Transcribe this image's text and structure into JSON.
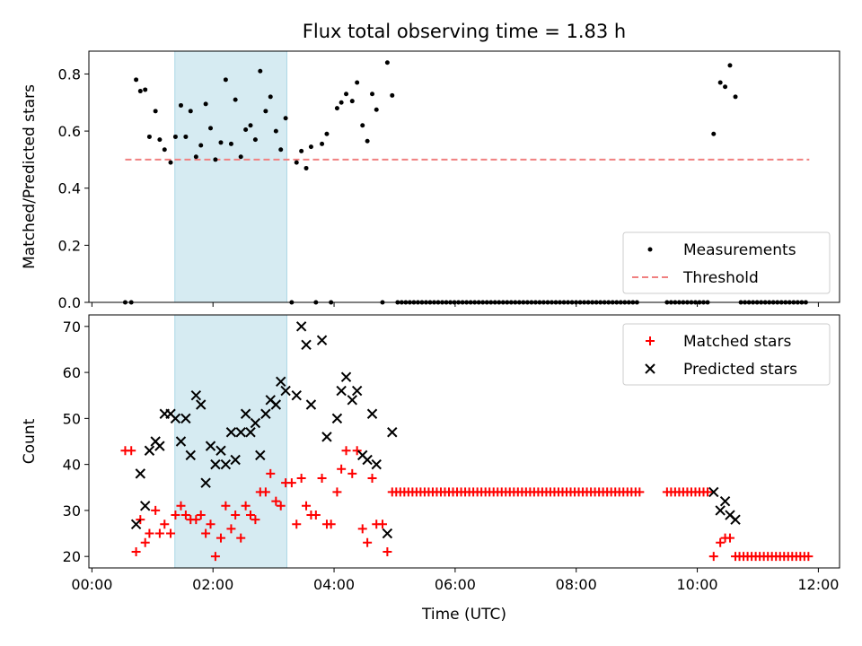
{
  "title": "Flux total observing time = 1.83 h",
  "chart_data": [
    {
      "type": "scatter",
      "panel": "top",
      "ylabel": "Matched/Predicted stars",
      "xlabel": "",
      "xlim": [
        -0.05,
        12.35
      ],
      "ylim": [
        0,
        0.88
      ],
      "yticks": [
        0.0,
        0.2,
        0.4,
        0.6,
        0.8
      ],
      "ytick_labels": [
        "0.0",
        "0.2",
        "0.4",
        "0.6",
        "0.8"
      ],
      "xticks": [
        0,
        2,
        4,
        6,
        8,
        10,
        12
      ],
      "shaded_span": {
        "x": [
          1.37,
          3.22
        ],
        "color": "#add8e6"
      },
      "legend": {
        "position": "lower right",
        "entries": [
          {
            "label": "Measurements",
            "marker": "dot",
            "color": "#000000"
          },
          {
            "label": "Threshold",
            "marker": "dashed-line",
            "color": "#f08080"
          }
        ]
      },
      "threshold": {
        "value": 0.5,
        "x": [
          0.55,
          11.85
        ],
        "color": "#f08080"
      },
      "series": [
        {
          "name": "Measurements",
          "color": "#000000",
          "points": [
            [
              0.55,
              0
            ],
            [
              0.65,
              0
            ],
            [
              0.73,
              0.78
            ],
            [
              0.8,
              0.74
            ],
            [
              0.88,
              0.745
            ],
            [
              0.95,
              0.58
            ],
            [
              1.05,
              0.67
            ],
            [
              1.12,
              0.57
            ],
            [
              1.2,
              0.535
            ],
            [
              1.3,
              0.49
            ],
            [
              1.38,
              0.58
            ],
            [
              1.47,
              0.69
            ],
            [
              1.55,
              0.58
            ],
            [
              1.63,
              0.67
            ],
            [
              1.72,
              0.51
            ],
            [
              1.8,
              0.55
            ],
            [
              1.88,
              0.695
            ],
            [
              1.96,
              0.61
            ],
            [
              2.04,
              0.5
            ],
            [
              2.13,
              0.56
            ],
            [
              2.21,
              0.78
            ],
            [
              2.3,
              0.555
            ],
            [
              2.37,
              0.71
            ],
            [
              2.46,
              0.51
            ],
            [
              2.54,
              0.605
            ],
            [
              2.62,
              0.62
            ],
            [
              2.7,
              0.57
            ],
            [
              2.78,
              0.81
            ],
            [
              2.87,
              0.67
            ],
            [
              2.95,
              0.72
            ],
            [
              3.04,
              0.6
            ],
            [
              3.12,
              0.535
            ],
            [
              3.2,
              0.645
            ],
            [
              3.3,
              0
            ],
            [
              3.38,
              0.49
            ],
            [
              3.46,
              0.53
            ],
            [
              3.54,
              0.47
            ],
            [
              3.62,
              0.545
            ],
            [
              3.8,
              0.555
            ],
            [
              3.88,
              0.59
            ],
            [
              3.7,
              0
            ],
            [
              3.95,
              0
            ],
            [
              4.05,
              0.68
            ],
            [
              4.12,
              0.7
            ],
            [
              4.2,
              0.73
            ],
            [
              4.3,
              0.705
            ],
            [
              4.38,
              0.77
            ],
            [
              4.47,
              0.62
            ],
            [
              4.55,
              0.565
            ],
            [
              4.63,
              0.73
            ],
            [
              4.7,
              0.675
            ],
            [
              4.8,
              0
            ],
            [
              4.88,
              0.84
            ],
            [
              4.96,
              0.725
            ],
            [
              10.27,
              0.59
            ],
            [
              10.38,
              0.77
            ],
            [
              10.46,
              0.755
            ],
            [
              10.54,
              0.83
            ],
            [
              10.63,
              0.72
            ]
          ]
        },
        {
          "name": "Measurements (zero run)",
          "color": "#000000",
          "zero_runs": [
            [
              5.05,
              9.05,
              0.067
            ],
            [
              9.5,
              10.2,
              0.067
            ],
            [
              10.72,
              11.85,
              0.067
            ]
          ]
        }
      ]
    },
    {
      "type": "scatter",
      "panel": "bottom",
      "xlabel": "Time (UTC)",
      "ylabel": "Count",
      "xlim": [
        -0.05,
        12.35
      ],
      "ylim": [
        17.5,
        72.5
      ],
      "yticks": [
        20,
        30,
        40,
        50,
        60,
        70
      ],
      "ytick_labels": [
        "20",
        "30",
        "40",
        "50",
        "60",
        "70"
      ],
      "xticks": [
        0,
        2,
        4,
        6,
        8,
        10,
        12
      ],
      "xtick_labels": [
        "00:00",
        "02:00",
        "04:00",
        "06:00",
        "08:00",
        "10:00",
        "12:00"
      ],
      "shaded_span": {
        "x": [
          1.37,
          3.22
        ],
        "color": "#add8e6"
      },
      "legend": {
        "position": "upper right",
        "entries": [
          {
            "label": "Matched stars",
            "marker": "plus",
            "color": "#ff0000"
          },
          {
            "label": "Predicted stars",
            "marker": "x",
            "color": "#000000"
          }
        ]
      },
      "series": [
        {
          "name": "Matched stars",
          "color": "#ff0000",
          "marker": "plus",
          "points": [
            [
              0.55,
              43
            ],
            [
              0.65,
              43
            ],
            [
              0.73,
              21
            ],
            [
              0.8,
              28
            ],
            [
              0.88,
              23
            ],
            [
              0.95,
              25
            ],
            [
              1.05,
              30
            ],
            [
              1.12,
              25
            ],
            [
              1.2,
              27
            ],
            [
              1.3,
              25
            ],
            [
              1.38,
              29
            ],
            [
              1.47,
              31
            ],
            [
              1.55,
              29
            ],
            [
              1.63,
              28
            ],
            [
              1.72,
              28
            ],
            [
              1.8,
              29
            ],
            [
              1.88,
              25
            ],
            [
              1.96,
              27
            ],
            [
              2.04,
              20
            ],
            [
              2.13,
              24
            ],
            [
              2.21,
              31
            ],
            [
              2.3,
              26
            ],
            [
              2.37,
              29
            ],
            [
              2.46,
              24
            ],
            [
              2.54,
              31
            ],
            [
              2.62,
              29
            ],
            [
              2.7,
              28
            ],
            [
              2.78,
              34
            ],
            [
              2.87,
              34
            ],
            [
              2.95,
              38
            ],
            [
              3.04,
              32
            ],
            [
              3.12,
              31
            ],
            [
              3.2,
              36
            ],
            [
              3.3,
              36
            ],
            [
              3.38,
              27
            ],
            [
              3.46,
              37
            ],
            [
              3.54,
              31
            ],
            [
              3.62,
              29
            ],
            [
              3.7,
              29
            ],
            [
              3.8,
              37
            ],
            [
              3.88,
              27
            ],
            [
              3.95,
              27
            ],
            [
              4.05,
              34
            ],
            [
              4.12,
              39
            ],
            [
              4.2,
              43
            ],
            [
              4.3,
              38
            ],
            [
              4.38,
              43
            ],
            [
              4.47,
              26
            ],
            [
              4.55,
              23
            ],
            [
              4.63,
              37
            ],
            [
              4.7,
              27
            ],
            [
              4.8,
              27
            ],
            [
              4.88,
              21
            ],
            [
              10.27,
              20
            ],
            [
              10.38,
              23
            ],
            [
              10.46,
              24
            ],
            [
              10.54,
              24
            ]
          ],
          "runs": [
            [
              4.96,
              9.05,
              34
            ],
            [
              9.5,
              10.2,
              34
            ],
            [
              10.63,
              11.85,
              20
            ]
          ]
        },
        {
          "name": "Predicted stars",
          "color": "#000000",
          "marker": "x",
          "points": [
            [
              0.73,
              27
            ],
            [
              0.8,
              38
            ],
            [
              0.88,
              31
            ],
            [
              0.95,
              43
            ],
            [
              1.05,
              45
            ],
            [
              1.12,
              44
            ],
            [
              1.2,
              51
            ],
            [
              1.3,
              51
            ],
            [
              1.38,
              50
            ],
            [
              1.47,
              45
            ],
            [
              1.55,
              50
            ],
            [
              1.63,
              42
            ],
            [
              1.72,
              55
            ],
            [
              1.8,
              53
            ],
            [
              1.88,
              36
            ],
            [
              1.96,
              44
            ],
            [
              2.04,
              40
            ],
            [
              2.13,
              43
            ],
            [
              2.21,
              40
            ],
            [
              2.3,
              47
            ],
            [
              2.37,
              41
            ],
            [
              2.46,
              47
            ],
            [
              2.54,
              51
            ],
            [
              2.62,
              47
            ],
            [
              2.7,
              49
            ],
            [
              2.78,
              42
            ],
            [
              2.87,
              51
            ],
            [
              2.95,
              54
            ],
            [
              3.04,
              53
            ],
            [
              3.12,
              58
            ],
            [
              3.2,
              56
            ],
            [
              3.38,
              55
            ],
            [
              3.46,
              70
            ],
            [
              3.54,
              66
            ],
            [
              3.62,
              53
            ],
            [
              3.8,
              67
            ],
            [
              3.88,
              46
            ],
            [
              4.05,
              50
            ],
            [
              4.12,
              56
            ],
            [
              4.2,
              59
            ],
            [
              4.3,
              54
            ],
            [
              4.38,
              56
            ],
            [
              4.47,
              42
            ],
            [
              4.55,
              41
            ],
            [
              4.63,
              51
            ],
            [
              4.7,
              40
            ],
            [
              4.88,
              25
            ],
            [
              4.96,
              47
            ],
            [
              10.27,
              34
            ],
            [
              10.38,
              30
            ],
            [
              10.46,
              32
            ],
            [
              10.54,
              29
            ],
            [
              10.63,
              28
            ]
          ]
        }
      ]
    }
  ]
}
